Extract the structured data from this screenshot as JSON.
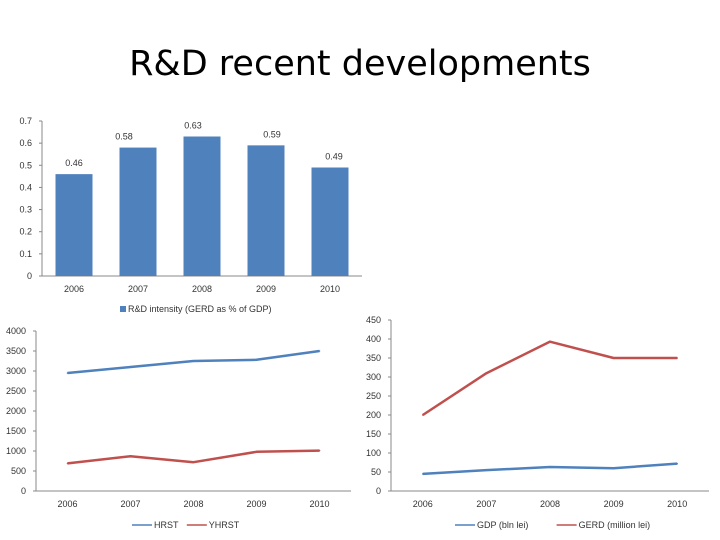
{
  "page": {
    "title": "R&D recent developments"
  },
  "chart_data": [
    {
      "type": "bar",
      "categories": [
        "2006",
        "2007",
        "2008",
        "2009",
        "2010"
      ],
      "series": [
        {
          "name": "R&D intensity (GERD as % of GDP)",
          "values": [
            0.46,
            0.58,
            0.63,
            0.59,
            0.49
          ],
          "color": "#4F81BD"
        }
      ],
      "data_labels": [
        "0.46",
        "0.58",
        "0.63",
        "0.59",
        "0.49"
      ],
      "ylim": [
        0,
        0.7
      ],
      "yticks": [
        "0",
        "0.1",
        "0.2",
        "0.3",
        "0.4",
        "0.5",
        "0.6",
        "0.7"
      ],
      "grid": false,
      "legend": "bottom"
    },
    {
      "type": "line",
      "categories": [
        "2006",
        "2007",
        "2008",
        "2009",
        "2010"
      ],
      "series": [
        {
          "name": "HRST",
          "values": [
            2950,
            3100,
            3250,
            3280,
            3500
          ],
          "color": "#4F81BD"
        },
        {
          "name": "YHRST",
          "values": [
            690,
            870,
            720,
            980,
            1010
          ],
          "color": "#C0504D"
        }
      ],
      "ylim": [
        0,
        4000
      ],
      "yticks": [
        "0",
        "500",
        "1000",
        "1500",
        "2000",
        "2500",
        "3000",
        "3500",
        "4000"
      ],
      "grid": false,
      "legend": "bottom"
    },
    {
      "type": "line",
      "categories": [
        "2006",
        "2007",
        "2008",
        "2009",
        "2010"
      ],
      "series": [
        {
          "name": "GDP (bln lei)",
          "values": [
            45,
            55,
            63,
            60,
            72
          ],
          "color": "#4F81BD"
        },
        {
          "name": "GERD (million lei)",
          "values": [
            200,
            310,
            393,
            350,
            350
          ],
          "color": "#C0504D"
        }
      ],
      "ylim": [
        0,
        450
      ],
      "yticks": [
        "0",
        "50",
        "100",
        "150",
        "200",
        "250",
        "300",
        "350",
        "400",
        "450"
      ],
      "grid": false,
      "legend": "bottom"
    }
  ]
}
